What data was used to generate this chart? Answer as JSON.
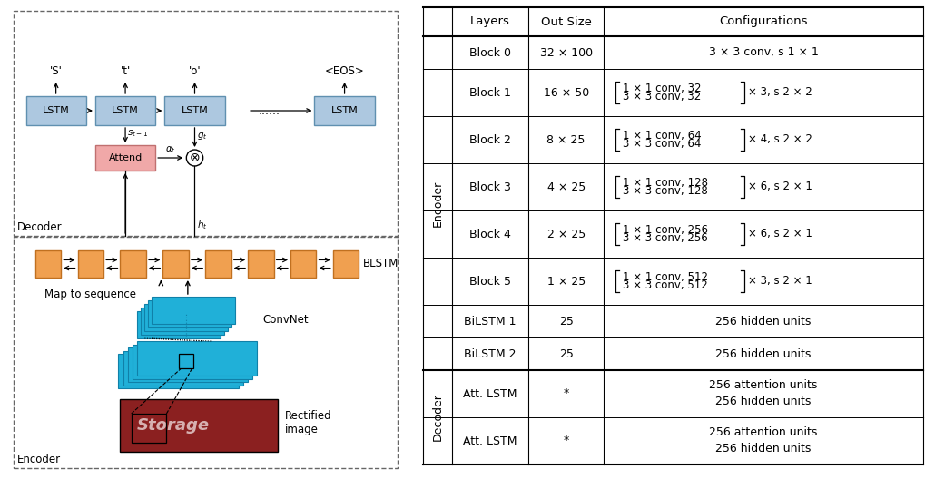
{
  "fig_width": 10.19,
  "fig_height": 5.28,
  "bg_color": "#ffffff",
  "table": {
    "headers": [
      "Layers",
      "Out Size",
      "Configurations"
    ],
    "rows": [
      {
        "layer": "Block 0",
        "out": "32 × 100",
        "config": "3 × 3 conv, s 1 × 1",
        "multiline": false
      },
      {
        "layer": "Block 1",
        "out": "16 × 50",
        "config_line1": "1 × 1 conv, 32",
        "config_line2": "3 × 3 conv, 32",
        "suffix": "× 3, s 2 × 2",
        "multiline": true
      },
      {
        "layer": "Block 2",
        "out": "8 × 25",
        "config_line1": "1 × 1 conv, 64",
        "config_line2": "3 × 3 conv, 64",
        "suffix": "× 4, s 2 × 2",
        "multiline": true
      },
      {
        "layer": "Block 3",
        "out": "4 × 25",
        "config_line1": "1 × 1 conv, 128",
        "config_line2": "3 × 3 conv, 128",
        "suffix": "× 6, s 2 × 1",
        "multiline": true
      },
      {
        "layer": "Block 4",
        "out": "2 × 25",
        "config_line1": "1 × 1 conv, 256",
        "config_line2": "3 × 3 conv, 256",
        "suffix": "× 6, s 2 × 1",
        "multiline": true
      },
      {
        "layer": "Block 5",
        "out": "1 × 25",
        "config_line1": "1 × 1 conv, 512",
        "config_line2": "3 × 3 conv, 512",
        "suffix": "× 3, s 2 × 1",
        "multiline": true
      },
      {
        "layer": "BiLSTM 1",
        "out": "25",
        "config": "256 hidden units",
        "multiline": false
      },
      {
        "layer": "BiLSTM 2",
        "out": "25",
        "config": "256 hidden units",
        "multiline": false
      },
      {
        "layer": "Att. LSTM",
        "out": "*",
        "config": "256 attention units\n256 hidden units",
        "multiline": false
      },
      {
        "layer": "Att. LSTM",
        "out": "*",
        "config": "256 attention units\n256 hidden units",
        "multiline": false
      }
    ],
    "encoder_rows": [
      0,
      1,
      2,
      3,
      4,
      5,
      6,
      7
    ],
    "decoder_rows": [
      8,
      9
    ]
  },
  "lstm_color": "#adc8e0",
  "attend_color": "#f0a8a8",
  "orange_color": "#f0a050",
  "blue_convnet": "#20b0d8",
  "blue_edge": "#1080a8",
  "orange_edge": "#c07020",
  "dashed_color": "#666666"
}
